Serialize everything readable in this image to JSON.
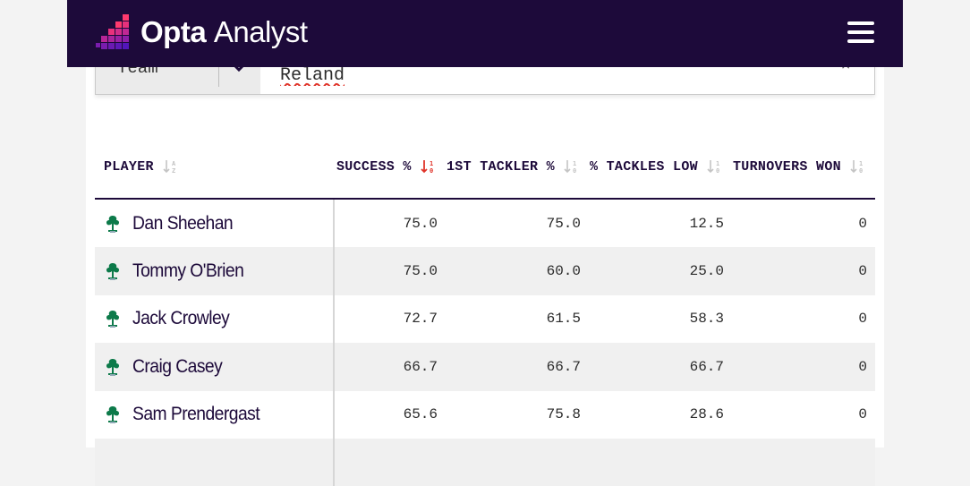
{
  "header": {
    "logo_bold": "Opta",
    "logo_light": "Analyst",
    "menu_icon": "hamburger-menu-icon"
  },
  "filter": {
    "select_label": "Team",
    "input_value": "Reland",
    "clear_glyph": "×"
  },
  "table": {
    "columns": [
      {
        "label": "PLAYER",
        "sort": "inactive"
      },
      {
        "label": "SUCCESS %",
        "sort": "active-desc"
      },
      {
        "label": "1ST TACKLER %",
        "sort": "inactive"
      },
      {
        "label": "% TACKLES LOW",
        "sort": "inactive"
      },
      {
        "label": "TURNOVERS WON",
        "sort": "inactive"
      }
    ],
    "rows": [
      {
        "player": "Dan Sheehan",
        "success": "75.0",
        "first_tackler": "75.0",
        "tackles_low": "12.5",
        "turnovers": "0"
      },
      {
        "player": "Tommy O'Brien",
        "success": "75.0",
        "first_tackler": "60.0",
        "tackles_low": "25.0",
        "turnovers": "0"
      },
      {
        "player": "Jack Crowley",
        "success": "72.7",
        "first_tackler": "61.5",
        "tackles_low": "58.3",
        "turnovers": "0"
      },
      {
        "player": "Craig Casey",
        "success": "66.7",
        "first_tackler": "66.7",
        "tackles_low": "66.7",
        "turnovers": "0"
      },
      {
        "player": "Sam Prendergast",
        "success": "65.6",
        "first_tackler": "75.8",
        "tackles_low": "28.6",
        "turnovers": "0"
      },
      {
        "player": "",
        "success": "",
        "first_tackler": "",
        "tackles_low": "",
        "turnovers": ""
      }
    ]
  },
  "colors": {
    "brand_navy": "#1d0a3a",
    "accent_red": "#e0342a",
    "crest_green": "#0d7a4a"
  }
}
